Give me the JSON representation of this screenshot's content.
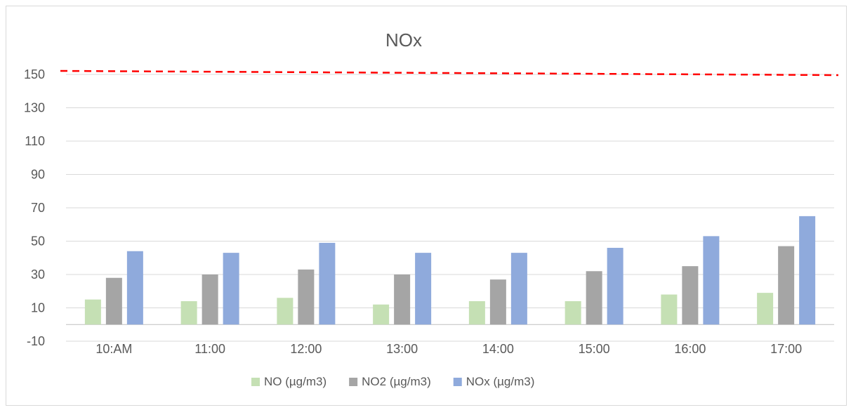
{
  "chart_data": {
    "type": "bar",
    "title": "NOx",
    "xlabel": "",
    "ylabel": "",
    "categories": [
      "10:AM",
      "11:00",
      "12:00",
      "13:00",
      "14:00",
      "15:00",
      "16:00",
      "17:00"
    ],
    "series": [
      {
        "name": "NO (µg/m3)",
        "color": "#c5e0b4",
        "values": [
          15,
          14,
          16,
          12,
          14,
          14,
          18,
          19
        ]
      },
      {
        "name": "NO2 (µg/m3)",
        "color": "#a5a5a5",
        "values": [
          28,
          30,
          33,
          30,
          27,
          32,
          35,
          47
        ]
      },
      {
        "name": "NOx (µg/m3)",
        "color": "#8faadc",
        "values": [
          44,
          43,
          49,
          43,
          43,
          46,
          53,
          65
        ]
      }
    ],
    "ylim": [
      -10,
      150
    ],
    "yticks": [
      -10,
      10,
      30,
      50,
      70,
      90,
      110,
      130,
      150
    ],
    "threshold": {
      "value": 150,
      "color": "#ff0000",
      "style": "dashed"
    },
    "grid": true,
    "legend_position": "bottom"
  }
}
